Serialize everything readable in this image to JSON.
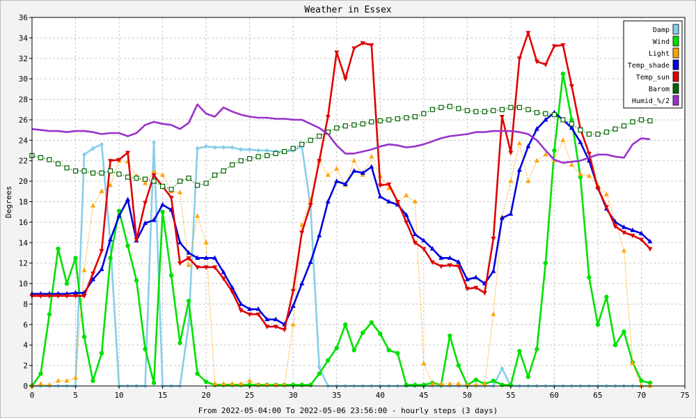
{
  "chart_data": {
    "type": "line",
    "title": "Weather in Essex",
    "xlabel": "From 2022-05-04:00 To 2022-05-06 23:56:00 - hourly steps (3 days)",
    "ylabel": "Degrees",
    "xlim": [
      0,
      75
    ],
    "ylim": [
      0,
      36
    ],
    "x_ticks": [
      0,
      5,
      10,
      15,
      20,
      25,
      30,
      35,
      40,
      45,
      50,
      55,
      60,
      65,
      70,
      75
    ],
    "y_ticks": [
      0,
      2,
      4,
      6,
      8,
      10,
      12,
      14,
      16,
      18,
      20,
      22,
      24,
      26,
      28,
      30,
      32,
      34,
      36
    ],
    "grid": true,
    "legend_position": "top-right",
    "series": [
      {
        "name": "Damp",
        "color": "#87ceeb",
        "marker": "diamond",
        "line": "solid",
        "x": [
          0,
          1,
          2,
          3,
          4,
          5,
          6,
          7,
          8,
          9,
          10,
          11,
          12,
          13,
          14,
          15,
          16,
          17,
          18,
          19,
          20,
          21,
          22,
          23,
          24,
          25,
          26,
          27,
          28,
          29,
          30,
          31,
          32,
          33,
          34,
          35,
          36,
          37,
          38,
          39,
          40,
          41,
          42,
          43,
          44,
          45,
          46,
          47,
          48,
          49,
          50,
          51,
          52,
          53,
          54,
          55,
          56,
          57,
          58,
          59,
          60,
          61,
          62,
          63,
          64,
          65,
          66,
          67,
          68,
          69,
          70,
          71
        ],
        "y": [
          0,
          0,
          0,
          0,
          0,
          0,
          22.6,
          23.2,
          23.6,
          14.0,
          0,
          0,
          0,
          0,
          23.8,
          0,
          0,
          0,
          6.0,
          23.2,
          23.4,
          23.3,
          23.3,
          23.3,
          23.1,
          23.1,
          23.0,
          23.0,
          22.9,
          22.9,
          23.0,
          23.4,
          17.5,
          1.8,
          0,
          0,
          0,
          0,
          0,
          0,
          0,
          0,
          0,
          0,
          0,
          0,
          0,
          0,
          0,
          0,
          0,
          0,
          0,
          0,
          1.7,
          0,
          0,
          0,
          0,
          0,
          0,
          0,
          0,
          0,
          0,
          0,
          0,
          0,
          0,
          0,
          0,
          0
        ]
      },
      {
        "name": "Wind",
        "color": "#00e000",
        "marker": "circle",
        "line": "solid",
        "x": [
          0,
          1,
          2,
          3,
          4,
          5,
          6,
          7,
          8,
          9,
          10,
          11,
          12,
          13,
          14,
          15,
          16,
          17,
          18,
          19,
          20,
          21,
          22,
          23,
          24,
          25,
          26,
          27,
          28,
          29,
          30,
          31,
          32,
          33,
          34,
          35,
          36,
          37,
          38,
          39,
          40,
          41,
          42,
          43,
          44,
          45,
          46,
          47,
          48,
          49,
          50,
          51,
          52,
          53,
          54,
          55,
          56,
          57,
          58,
          59,
          60,
          61,
          62,
          63,
          64,
          65,
          66,
          67,
          68,
          69,
          70,
          71
        ],
        "y": [
          0,
          1.2,
          7.0,
          13.4,
          10.0,
          12.5,
          4.8,
          0.5,
          3.2,
          12.5,
          17.1,
          13.7,
          10.3,
          3.6,
          0.3,
          17.0,
          10.8,
          4.2,
          8.3,
          1.2,
          0.4,
          0.1,
          0.1,
          0.1,
          0.1,
          0.1,
          0.1,
          0.1,
          0.1,
          0.1,
          0.1,
          0.1,
          0.1,
          1.2,
          2.5,
          3.7,
          6.0,
          3.5,
          5.2,
          6.2,
          5.1,
          3.5,
          3.2,
          0.1,
          0.1,
          0.1,
          0.3,
          0.1,
          4.9,
          2.0,
          0.1,
          0.6,
          0.2,
          0.5,
          0.1,
          0.1,
          3.4,
          0.9,
          3.6,
          12.0,
          23.0,
          30.5,
          26.0,
          20.4,
          10.6,
          6.0,
          8.7,
          4.0,
          5.3,
          2.3,
          0.5,
          0.3
        ]
      },
      {
        "name": "Light",
        "color": "#ffa500",
        "marker": "triangle-up",
        "line": "dotted",
        "x": [
          0,
          1,
          2,
          3,
          4,
          5,
          6,
          7,
          8,
          9,
          10,
          11,
          12,
          13,
          14,
          15,
          16,
          17,
          18,
          19,
          20,
          21,
          22,
          23,
          24,
          25,
          26,
          27,
          28,
          29,
          30,
          31,
          32,
          33,
          34,
          35,
          36,
          37,
          38,
          39,
          40,
          41,
          42,
          43,
          44,
          45,
          46,
          47,
          48,
          49,
          50,
          51,
          52,
          53,
          54,
          55,
          56,
          57,
          58,
          59,
          60,
          61,
          62,
          63,
          64,
          65,
          66,
          67,
          68,
          69,
          70,
          71
        ],
        "y": [
          0,
          0.2,
          0.1,
          0.5,
          0.5,
          0.8,
          11.3,
          17.6,
          19.0,
          19.6,
          22.0,
          21.9,
          20.5,
          19.8,
          20.9,
          20.6,
          19.0,
          18.9,
          11.8,
          16.6,
          14.0,
          0.2,
          0.2,
          0.2,
          0.2,
          0.5,
          0.1,
          0.1,
          0.1,
          0.1,
          6.0,
          15.7,
          18.2,
          22.0,
          20.6,
          21.2,
          19.6,
          22.0,
          20.6,
          22.4,
          20.5,
          19.3,
          18.0,
          18.6,
          18.0,
          2.2,
          0.2,
          0.2,
          0.2,
          0.2,
          0.1,
          0.1,
          0.2,
          7.0,
          16.5,
          20.0,
          23.7,
          20.0,
          22.0,
          22.6,
          22.0,
          24.0,
          21.6,
          20.7,
          20.5,
          19.6,
          18.7,
          16.1,
          13.2,
          2.2,
          0,
          0
        ]
      },
      {
        "name": "Temp_shade",
        "color": "#0000e0",
        "marker": "triangle-up",
        "line": "solid",
        "x": [
          0,
          1,
          2,
          3,
          4,
          5,
          6,
          7,
          8,
          9,
          10,
          11,
          12,
          13,
          14,
          15,
          16,
          17,
          18,
          19,
          20,
          21,
          22,
          23,
          24,
          25,
          26,
          27,
          28,
          29,
          30,
          31,
          32,
          33,
          34,
          35,
          36,
          37,
          38,
          39,
          40,
          41,
          42,
          43,
          44,
          45,
          46,
          47,
          48,
          49,
          50,
          51,
          52,
          53,
          54,
          55,
          56,
          57,
          58,
          59,
          60,
          61,
          62,
          63,
          64,
          65,
          66,
          67,
          68,
          69,
          70,
          71
        ],
        "y": [
          9.0,
          9.0,
          9.0,
          9.0,
          9.0,
          9.1,
          9.1,
          10.4,
          11.4,
          14.3,
          16.6,
          18.2,
          14.2,
          15.9,
          16.2,
          17.7,
          17.2,
          14.0,
          13.0,
          12.5,
          12.5,
          12.5,
          11.1,
          9.6,
          8.0,
          7.5,
          7.5,
          6.5,
          6.5,
          6.0,
          7.8,
          10.0,
          12.1,
          14.7,
          18.0,
          20.0,
          19.7,
          21.0,
          20.8,
          21.4,
          18.5,
          18.0,
          17.7,
          16.7,
          14.8,
          14.2,
          13.4,
          12.5,
          12.5,
          12.1,
          10.4,
          10.6,
          10.0,
          11.2,
          16.4,
          16.8,
          21.1,
          23.4,
          25.1,
          26.0,
          26.7,
          26.0,
          25.2,
          23.8,
          22.0,
          19.4,
          17.3,
          16.0,
          15.5,
          15.2,
          14.9,
          14.1
        ]
      },
      {
        "name": "Temp_sun",
        "color": "#e00000",
        "marker": "triangle-down",
        "line": "solid",
        "x": [
          0,
          1,
          2,
          3,
          4,
          5,
          6,
          7,
          8,
          9,
          10,
          11,
          12,
          13,
          14,
          15,
          16,
          17,
          18,
          19,
          20,
          21,
          22,
          23,
          24,
          25,
          26,
          27,
          28,
          29,
          30,
          31,
          32,
          33,
          34,
          35,
          36,
          37,
          38,
          39,
          40,
          41,
          42,
          43,
          44,
          45,
          46,
          47,
          48,
          49,
          50,
          51,
          52,
          53,
          54,
          55,
          56,
          57,
          58,
          59,
          60,
          61,
          62,
          63,
          64,
          65,
          66,
          67,
          68,
          69,
          70,
          71
        ],
        "y": [
          8.8,
          8.8,
          8.8,
          8.8,
          8.8,
          8.8,
          8.8,
          11.0,
          13.2,
          22.0,
          22.1,
          22.8,
          14.3,
          17.9,
          20.6,
          19.5,
          18.4,
          12.0,
          12.5,
          11.6,
          11.6,
          11.6,
          10.5,
          9.2,
          7.4,
          7.0,
          7.0,
          5.8,
          5.8,
          5.5,
          9.3,
          15.0,
          17.7,
          22.0,
          26.3,
          32.6,
          30.0,
          33.0,
          33.5,
          33.3,
          19.6,
          19.7,
          18.0,
          16.0,
          14.0,
          13.4,
          12.1,
          11.7,
          11.8,
          11.7,
          9.5,
          9.6,
          9.1,
          14.4,
          26.3,
          22.8,
          32.0,
          34.5,
          31.7,
          31.4,
          33.2,
          33.3,
          29.3,
          25.1,
          22.7,
          19.3,
          17.5,
          15.6,
          15.0,
          14.7,
          14.3,
          13.4
        ]
      },
      {
        "name": "Barom",
        "color": "#006400",
        "marker": "square",
        "line": "dotted",
        "x": [
          0,
          1,
          2,
          3,
          4,
          5,
          6,
          7,
          8,
          9,
          10,
          11,
          12,
          13,
          14,
          15,
          16,
          17,
          18,
          19,
          20,
          21,
          22,
          23,
          24,
          25,
          26,
          27,
          28,
          29,
          30,
          31,
          32,
          33,
          34,
          35,
          36,
          37,
          38,
          39,
          40,
          41,
          42,
          43,
          44,
          45,
          46,
          47,
          48,
          49,
          50,
          51,
          52,
          53,
          54,
          55,
          56,
          57,
          58,
          59,
          60,
          61,
          62,
          63,
          64,
          65,
          66,
          67,
          68,
          69,
          70,
          71
        ],
        "y": [
          22.5,
          22.3,
          22.1,
          21.7,
          21.3,
          21.0,
          21.0,
          20.8,
          20.8,
          21.0,
          20.7,
          20.4,
          20.3,
          20.2,
          20.0,
          19.5,
          19.2,
          20.0,
          20.3,
          19.6,
          19.8,
          20.6,
          21.0,
          21.6,
          22.0,
          22.2,
          22.4,
          22.5,
          22.7,
          22.9,
          23.2,
          23.6,
          24.0,
          24.4,
          24.8,
          25.2,
          25.4,
          25.5,
          25.6,
          25.8,
          25.9,
          26.0,
          26.1,
          26.2,
          26.3,
          26.6,
          27.0,
          27.2,
          27.3,
          27.1,
          26.9,
          26.8,
          26.8,
          26.9,
          27.0,
          27.2,
          27.2,
          27.0,
          26.7,
          26.6,
          26.5,
          26.0,
          25.6,
          25.0,
          24.6,
          24.6,
          24.8,
          25.1,
          25.4,
          25.8,
          26.0,
          25.9
        ]
      },
      {
        "name": "Humid_%/2",
        "color": "#9932cc",
        "marker": "none",
        "line": "solid",
        "x": [
          0,
          1,
          2,
          3,
          4,
          5,
          6,
          7,
          8,
          9,
          10,
          11,
          12,
          13,
          14,
          15,
          16,
          17,
          18,
          19,
          20,
          21,
          22,
          23,
          24,
          25,
          26,
          27,
          28,
          29,
          30,
          31,
          32,
          33,
          34,
          35,
          36,
          37,
          38,
          39,
          40,
          41,
          42,
          43,
          44,
          45,
          46,
          47,
          48,
          49,
          50,
          51,
          52,
          53,
          54,
          55,
          56,
          57,
          58,
          59,
          60,
          61,
          62,
          63,
          64,
          65,
          66,
          67,
          68,
          69,
          70,
          71
        ],
        "y": [
          25.1,
          25.0,
          24.9,
          24.9,
          24.8,
          24.9,
          24.9,
          24.8,
          24.6,
          24.7,
          24.7,
          24.4,
          24.7,
          25.5,
          25.8,
          25.6,
          25.5,
          25.1,
          25.7,
          27.5,
          26.6,
          26.3,
          27.2,
          26.8,
          26.5,
          26.3,
          26.2,
          26.2,
          26.1,
          26.1,
          26.0,
          26.0,
          25.6,
          25.2,
          24.6,
          23.5,
          22.7,
          22.7,
          22.9,
          23.1,
          23.4,
          23.6,
          23.5,
          23.3,
          23.4,
          23.6,
          23.9,
          24.2,
          24.4,
          24.5,
          24.6,
          24.8,
          24.8,
          24.9,
          24.9,
          24.9,
          24.8,
          24.6,
          24.0,
          23.0,
          22.1,
          21.8,
          21.9,
          22.0,
          22.3,
          22.6,
          22.6,
          22.4,
          22.3,
          23.6,
          24.2,
          24.1
        ]
      }
    ]
  }
}
